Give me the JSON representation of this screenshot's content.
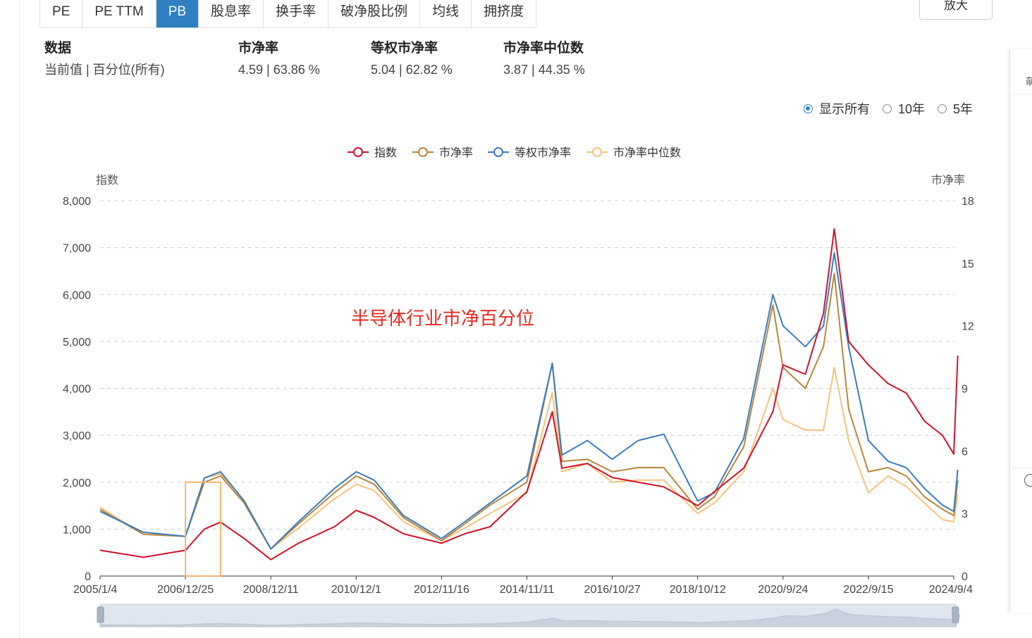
{
  "tabs": [
    {
      "label": "PE",
      "active": false
    },
    {
      "label": "PE TTM",
      "active": false
    },
    {
      "label": "PB",
      "active": true
    },
    {
      "label": "股息率",
      "active": false
    },
    {
      "label": "换手率",
      "active": false
    },
    {
      "label": "破净股比例",
      "active": false
    },
    {
      "label": "均线",
      "active": false
    },
    {
      "label": "拥挤度",
      "active": false
    }
  ],
  "enlarge_label": "放大",
  "stats": [
    {
      "header": "数据",
      "value": "当前值 | 百分位(所有)"
    },
    {
      "header": "市净率",
      "value": "4.59 | 63.86 %"
    },
    {
      "header": "等权市净率",
      "value": "5.04 | 62.82 %"
    },
    {
      "header": "市净率中位数",
      "value": "3.87 | 44.35 %"
    }
  ],
  "range_options": [
    {
      "label": "显示所有",
      "selected": true
    },
    {
      "label": "10年",
      "selected": false
    },
    {
      "label": "5年",
      "selected": false
    }
  ],
  "side_panel": {
    "glyph": "萌"
  },
  "colors": {
    "index": "#d0112b",
    "pb": "#b8863b",
    "equal_pb": "#3a7cc0",
    "median_pb": "#f7c27a",
    "selected_range": "#f5b56b",
    "accent": "#2f7fc1"
  },
  "chart_data": {
    "type": "line",
    "annotation": "半导体行业市净百分位",
    "legend_position": "top-center",
    "grid": true,
    "y_left": {
      "label": "指数",
      "min": 0,
      "max": 8000,
      "ticks": [
        0,
        1000,
        2000,
        3000,
        4000,
        5000,
        6000,
        7000,
        8000
      ]
    },
    "y_right": {
      "label": "市净率",
      "min": 0,
      "max": 18,
      "ticks": [
        0,
        3,
        6,
        9,
        12,
        15,
        18
      ]
    },
    "x_tick_labels": [
      "2005/1/4",
      "2006/12/25",
      "2008/12/11",
      "2010/12/1",
      "2012/11/16",
      "2014/11/11",
      "2016/10/27",
      "2018/10/12",
      "2020/9/24",
      "2022/9/15",
      "2024/9/4"
    ],
    "highlight_range": [
      "2006/12/25",
      "2007/10/16"
    ],
    "x": [
      "2005/1/4",
      "2006/1/4",
      "2006/12/25",
      "2007/6/1",
      "2007/10/16",
      "2008/5/1",
      "2008/12/11",
      "2009/8/1",
      "2010/6/1",
      "2010/12/1",
      "2011/5/1",
      "2012/1/1",
      "2012/11/16",
      "2013/6/1",
      "2014/1/1",
      "2014/11/11",
      "2015/6/12",
      "2015/9/1",
      "2016/4/1",
      "2016/10/27",
      "2017/6/1",
      "2018/1/1",
      "2018/10/12",
      "2019/3/1",
      "2019/11/1",
      "2020/7/1",
      "2020/9/24",
      "2021/4/1",
      "2021/9/1",
      "2021/12/1",
      "2022/4/1",
      "2022/9/15",
      "2023/3/1",
      "2023/8/1",
      "2024/1/1",
      "2024/6/1",
      "2024/9/4",
      "2024/10/8"
    ],
    "series": [
      {
        "name": "指数",
        "axis": "left",
        "values": [
          550,
          400,
          550,
          1000,
          1150,
          800,
          350,
          700,
          1050,
          1400,
          1250,
          900,
          700,
          900,
          1050,
          1800,
          3500,
          2300,
          2400,
          2100,
          2000,
          1900,
          1500,
          1800,
          2300,
          3500,
          4500,
          4300,
          5600,
          7400,
          5000,
          4500,
          4100,
          3900,
          3300,
          3000,
          2600,
          4700
        ]
      },
      {
        "name": "市净率",
        "axis": "right",
        "values": [
          3.2,
          2.0,
          1.9,
          4.5,
          4.8,
          3.5,
          1.3,
          2.5,
          4.0,
          4.8,
          4.4,
          2.8,
          1.7,
          2.5,
          3.4,
          4.5,
          10.2,
          5.5,
          5.6,
          5.0,
          5.2,
          5.2,
          3.2,
          3.8,
          6.2,
          13.0,
          10.0,
          9.0,
          11.0,
          14.5,
          8.0,
          5.0,
          5.2,
          4.8,
          3.8,
          3.2,
          2.9,
          4.6
        ]
      },
      {
        "name": "等权市净率",
        "axis": "right",
        "values": [
          3.1,
          2.1,
          1.9,
          4.7,
          5.0,
          3.6,
          1.3,
          2.6,
          4.2,
          5.0,
          4.6,
          2.9,
          1.8,
          2.6,
          3.5,
          4.8,
          10.2,
          5.8,
          6.5,
          5.6,
          6.5,
          6.8,
          3.6,
          4.0,
          6.6,
          13.5,
          12.0,
          11.0,
          12.0,
          15.5,
          11.0,
          6.5,
          5.5,
          5.2,
          4.2,
          3.4,
          3.1,
          5.1
        ]
      },
      {
        "name": "市净率中位数",
        "axis": "right",
        "values": [
          3.3,
          2.0,
          1.9,
          4.7,
          4.9,
          3.6,
          1.3,
          2.3,
          3.7,
          4.4,
          4.1,
          2.6,
          1.7,
          2.3,
          3.0,
          4.0,
          8.8,
          5.0,
          5.4,
          4.5,
          4.6,
          4.6,
          3.0,
          3.5,
          5.0,
          9.0,
          7.5,
          7.0,
          7.0,
          10.0,
          6.5,
          4.0,
          4.8,
          4.3,
          3.5,
          2.7,
          2.6,
          3.9
        ]
      }
    ]
  }
}
